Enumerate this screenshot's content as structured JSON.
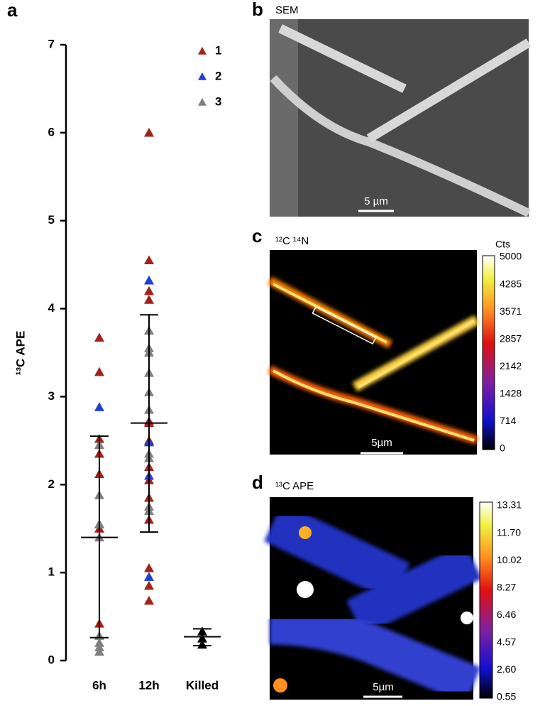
{
  "chart_data": {
    "type": "scatter",
    "panel": "a",
    "ylabel": "¹³C APE",
    "categories": [
      "6h",
      "12h",
      "Killed"
    ],
    "ylim": [
      0,
      7
    ],
    "yticks": [
      0,
      1,
      2,
      3,
      4,
      5,
      6,
      7
    ],
    "series": [
      {
        "name": "1",
        "color": "#a3221c",
        "groups": [
          [
            3.67,
            3.28,
            2.52,
            2.35,
            2.12,
            1.55,
            1.5,
            0.42
          ],
          [
            6.0,
            4.55,
            4.2,
            4.1,
            2.72,
            2.7,
            2.5,
            2.2,
            2.05,
            1.85,
            1.6,
            1.05,
            0.85,
            0.68
          ],
          []
        ]
      },
      {
        "name": "2",
        "color": "#1f3fd6",
        "groups": [
          [
            2.88,
            2.45
          ],
          [
            4.32,
            2.48,
            2.1,
            0.95
          ],
          []
        ]
      },
      {
        "name": "3",
        "color": "#808080",
        "groups": [
          [
            2.45,
            1.88,
            1.55,
            1.4,
            0.28,
            0.2,
            0.15,
            0.1
          ],
          [
            3.75,
            3.55,
            3.5,
            3.27,
            3.05,
            2.85,
            2.35,
            2.3,
            1.75,
            1.7
          ],
          []
        ]
      },
      {
        "color": "#000000",
        "groups": [
          [],
          [],
          [
            0.33,
            0.25,
            0.18
          ]
        ]
      }
    ],
    "summary": {
      "mean": [
        1.4,
        2.7,
        0.27
      ],
      "upper": [
        2.55,
        3.93,
        0.36
      ],
      "lower": [
        0.26,
        1.46,
        0.17
      ]
    }
  },
  "panels": [
    {
      "letter": "b",
      "label": "SEM",
      "scale_bar": "5 µm"
    },
    {
      "letter": "c",
      "label": "¹²C ¹⁴N",
      "scale_bar": "5µm",
      "colorbar": {
        "title": "Cts",
        "ticks": [
          "5000",
          "4285",
          "3571",
          "2857",
          "2142",
          "1428",
          "714",
          "0"
        ]
      }
    },
    {
      "letter": "d",
      "label": "¹³C APE",
      "scale_bar": "5µm",
      "colorbar": {
        "ticks": [
          "13.31",
          "11.70",
          "10.02",
          "8.27",
          "6.46",
          "4.57",
          "2.60",
          "0.55"
        ]
      }
    }
  ]
}
